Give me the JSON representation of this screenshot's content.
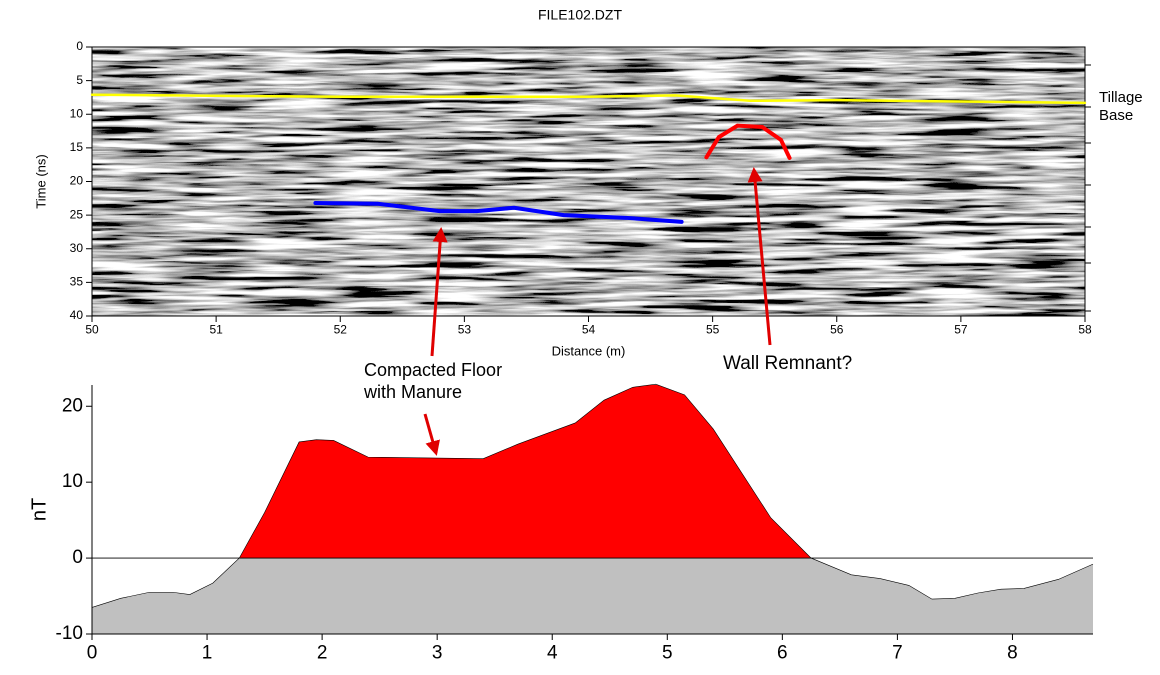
{
  "chart_data": [
    {
      "type": "line",
      "title": "FILE102.DZT",
      "xlabel": "Distance (m)",
      "ylabel": "Time (ns)",
      "xlim": [
        50,
        58
      ],
      "xticks": [
        50,
        51,
        52,
        53,
        54,
        55,
        56,
        57,
        58
      ],
      "ylim": [
        40,
        0
      ],
      "yticks": [
        0,
        5,
        10,
        15,
        20,
        25,
        30,
        35,
        40
      ],
      "series": [
        {
          "name": "Tillage Base",
          "color": "#ffff00",
          "x": [
            50,
            52,
            54,
            54.7,
            55.3,
            56,
            58
          ],
          "values": [
            7.1,
            7.4,
            7.4,
            7.2,
            8.0,
            7.9,
            8.3
          ]
        },
        {
          "color": "#0000ff",
          "x": [
            51.8,
            52.3,
            52.8,
            53.1,
            53.4,
            53.8,
            54.3,
            54.75
          ],
          "values": [
            23.2,
            23.3,
            24.4,
            24.4,
            23.9,
            25.0,
            25.4,
            26.0
          ]
        },
        {
          "color": "#ff0000",
          "x": [
            54.95,
            55.05,
            55.2,
            55.4,
            55.55,
            55.62
          ],
          "values": [
            16.4,
            13.4,
            11.7,
            11.9,
            13.8,
            16.5
          ]
        }
      ],
      "annotations": [
        "Wall Remnant?"
      ]
    },
    {
      "type": "area",
      "ylabel": "nT",
      "xlim": [
        0,
        8.7
      ],
      "xticks": [
        0,
        1,
        2,
        3,
        4,
        5,
        6,
        7,
        8
      ],
      "ylim": [
        -10,
        22.8
      ],
      "yticks": [
        -10,
        0,
        10,
        20
      ],
      "x": [
        0,
        0.25,
        0.5,
        0.7,
        0.85,
        1.05,
        1.28,
        1.5,
        1.8,
        1.95,
        2.1,
        2.4,
        3.4,
        3.7,
        4.2,
        4.45,
        4.7,
        4.9,
        5.15,
        5.4,
        5.9,
        6.25,
        6.6,
        6.85,
        7.1,
        7.3,
        7.5,
        7.7,
        7.9,
        8.1,
        8.4,
        8.7
      ],
      "values": [
        -6.5,
        -5.3,
        -4.5,
        -4.5,
        -4.8,
        -3.3,
        0,
        6,
        15.3,
        15.6,
        15.5,
        13.3,
        13.1,
        15,
        17.8,
        20.8,
        22.5,
        22.9,
        21.5,
        17,
        5.3,
        0,
        -2.2,
        -2.7,
        -3.6,
        -5.4,
        -5.3,
        -4.6,
        -4.1,
        -4,
        -2.8,
        -0.8
      ],
      "positive_color": "#ff0000",
      "negative_color": "#c0c0c0",
      "annotations": [
        "Compacted Floor with Manure"
      ]
    }
  ]
}
